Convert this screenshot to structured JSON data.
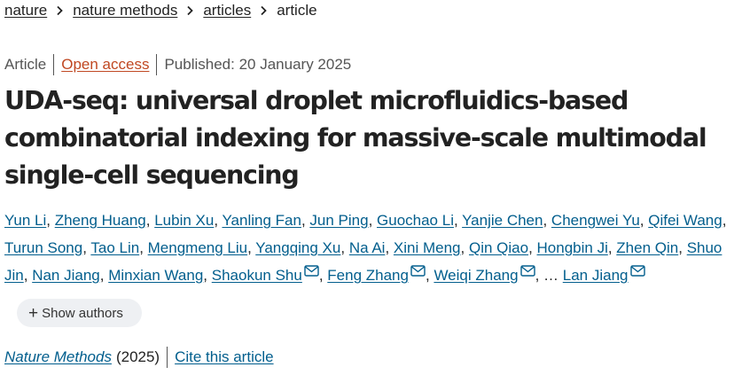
{
  "breadcrumb": {
    "items": [
      "nature",
      "nature methods",
      "articles"
    ],
    "current": "article"
  },
  "meta": {
    "type": "Article",
    "access": "Open access",
    "published": "Published: 20 January 2025"
  },
  "title": "UDA-seq: universal droplet microfluidics-based combinatorial indexing for massive-scale multimodal single-cell sequencing",
  "authors": [
    {
      "name": "Yun Li",
      "email": false
    },
    {
      "name": "Zheng Huang",
      "email": false
    },
    {
      "name": "Lubin Xu",
      "email": false
    },
    {
      "name": "Yanling Fan",
      "email": false
    },
    {
      "name": "Jun Ping",
      "email": false
    },
    {
      "name": "Guochao Li",
      "email": false
    },
    {
      "name": "Yanjie Chen",
      "email": false
    },
    {
      "name": "Chengwei Yu",
      "email": false
    },
    {
      "name": "Qifei Wang",
      "email": false
    },
    {
      "name": "Turun Song",
      "email": false
    },
    {
      "name": "Tao Lin",
      "email": false
    },
    {
      "name": "Mengmeng Liu",
      "email": false
    },
    {
      "name": "Yangqing Xu",
      "email": false
    },
    {
      "name": "Na Ai",
      "email": false
    },
    {
      "name": "Xini Meng",
      "email": false
    },
    {
      "name": "Qin Qiao",
      "email": false
    },
    {
      "name": "Hongbin Ji",
      "email": false
    },
    {
      "name": "Zhen Qin",
      "email": false
    },
    {
      "name": "Shuo Jin",
      "email": false
    },
    {
      "name": "Nan Jiang",
      "email": false
    },
    {
      "name": "Minxian Wang",
      "email": false
    },
    {
      "name": "Shaokun Shu",
      "email": true
    },
    {
      "name": "Feng Zhang",
      "email": true
    },
    {
      "name": "Weiqi Zhang",
      "email": true
    },
    {
      "name": "Lan Jiang",
      "email": true
    }
  ],
  "authors_ellipsis": "…",
  "show_authors_label": "Show authors",
  "citation": {
    "journal": "Nature Methods",
    "year": "(2025)",
    "cite_label": "Cite this article"
  },
  "colors": {
    "link": "#025e8d",
    "open_access": "#c04822",
    "text": "#222222",
    "pill_bg": "#eef0f3"
  },
  "icons": [
    "chevron-right-icon",
    "mail-icon",
    "plus-icon"
  ]
}
